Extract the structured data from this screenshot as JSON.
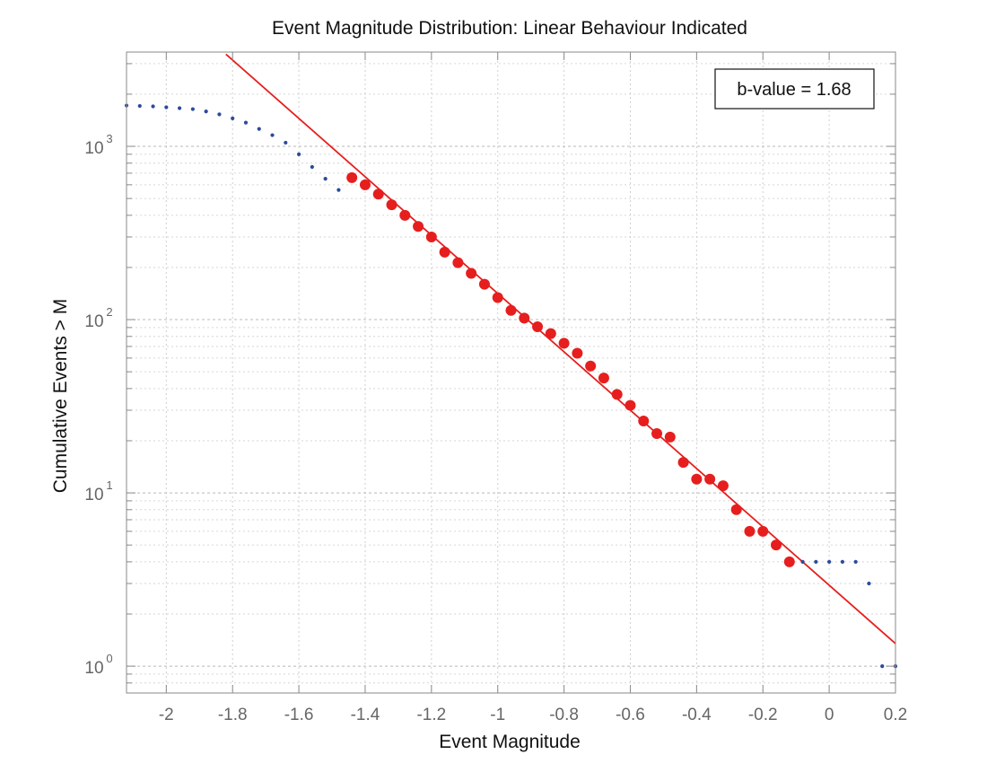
{
  "chart_data": {
    "type": "scatter",
    "title": "Event Magnitude Distribution:  Linear Behaviour Indicated",
    "xlabel": "Event Magnitude",
    "ylabel": "Cumulative Events > M",
    "x_scale": "linear",
    "y_scale": "log",
    "xlim": [
      -2.12,
      0.2
    ],
    "ylim": [
      0.7,
      3500
    ],
    "x_ticks": [
      -2,
      -1.8,
      -1.6,
      -1.4,
      -1.2,
      -1,
      -0.8,
      -0.6,
      -0.4,
      -0.2,
      0,
      0.2
    ],
    "x_tick_labels": [
      "-2",
      "-1.8",
      "-1.6",
      "-1.4",
      "-1.2",
      "-1",
      "-0.8",
      "-0.6",
      "-0.4",
      "-0.2",
      "0",
      "0.2"
    ],
    "y_ticks": [
      1,
      10,
      100,
      1000
    ],
    "y_tick_labels": [
      {
        "base": "10",
        "exp": "0"
      },
      {
        "base": "10",
        "exp": "1"
      },
      {
        "base": "10",
        "exp": "2"
      },
      {
        "base": "10",
        "exp": "3"
      }
    ],
    "grid": true,
    "series": [
      {
        "marker": "small-dot",
        "color": "#2b4b9b",
        "x": [
          -2.12,
          -2.08,
          -2.04,
          -2.0,
          -1.96,
          -1.92,
          -1.88,
          -1.84,
          -1.8,
          -1.76,
          -1.72,
          -1.68,
          -1.64,
          -1.6,
          -1.56,
          -1.52,
          -1.48,
          -0.08,
          -0.04,
          0.0,
          0.04,
          0.08,
          0.12,
          0.16,
          0.2
        ],
        "y": [
          1720,
          1710,
          1700,
          1680,
          1660,
          1640,
          1590,
          1530,
          1450,
          1370,
          1260,
          1160,
          1050,
          900,
          760,
          650,
          560,
          4,
          4,
          4,
          4,
          4,
          3,
          1,
          1
        ]
      },
      {
        "marker": "large-dot",
        "color": "#e61e1e",
        "x": [
          -1.44,
          -1.4,
          -1.36,
          -1.32,
          -1.28,
          -1.24,
          -1.2,
          -1.16,
          -1.12,
          -1.08,
          -1.04,
          -1.0,
          -0.96,
          -0.92,
          -0.88,
          -0.84,
          -0.8,
          -0.76,
          -0.72,
          -0.68,
          -0.64,
          -0.6,
          -0.56,
          -0.52,
          -0.48,
          -0.44,
          -0.4,
          -0.36,
          -0.32,
          -0.28,
          -0.24,
          -0.2,
          -0.16,
          -0.12
        ],
        "y": [
          660,
          600,
          530,
          460,
          400,
          345,
          300,
          245,
          213,
          185,
          160,
          134,
          113,
          102,
          91,
          83,
          73,
          64,
          54,
          46,
          37,
          32,
          26,
          22,
          21,
          15,
          12,
          12,
          11,
          8,
          6,
          6,
          5,
          4
        ]
      }
    ],
    "fit_line": {
      "color": "#e61e1e",
      "b_value": 1.68,
      "x_range": [
        -1.82,
        0.2
      ],
      "y_at_x_range": [
        3400,
        1.35
      ]
    },
    "annotation": {
      "text": "b-value = 1.68",
      "position": "top-right"
    }
  }
}
